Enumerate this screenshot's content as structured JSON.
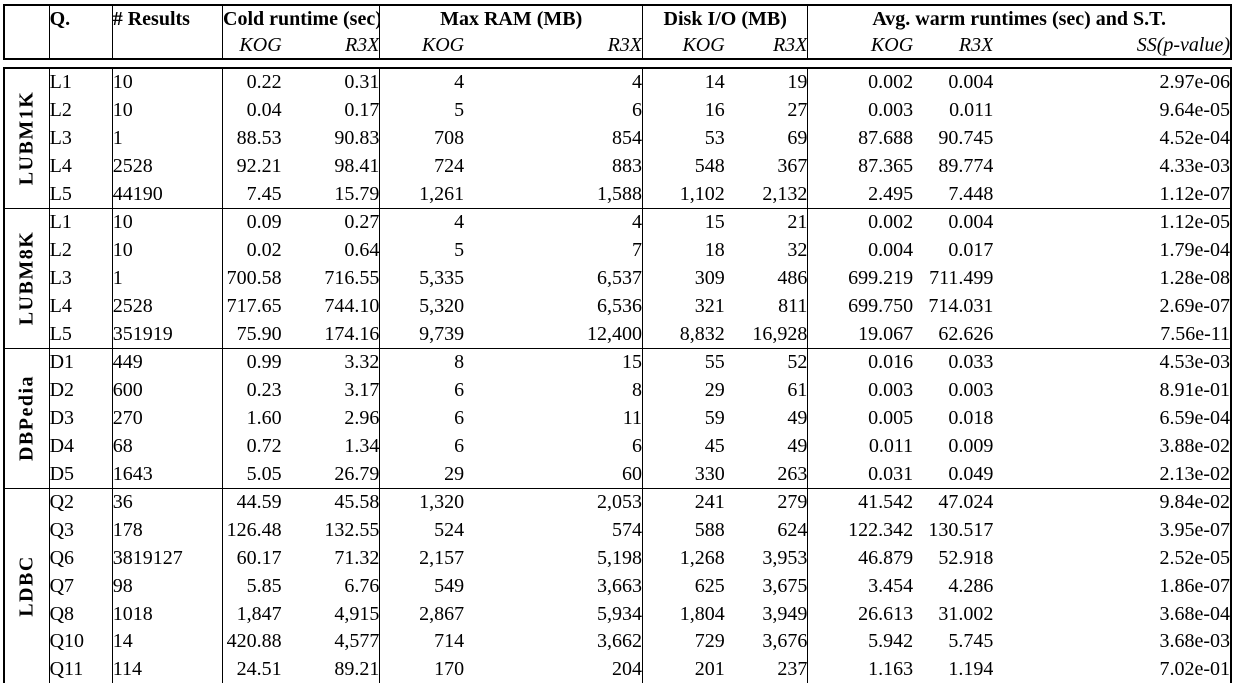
{
  "colors": {
    "text": "#000000",
    "background": "#ffffff",
    "rule": "#000000"
  },
  "table": {
    "header": {
      "q": "Q.",
      "results": "# Results",
      "groups": [
        {
          "label": "Cold runtime (sec)",
          "sub": [
            "KOG",
            "R3X"
          ]
        },
        {
          "label": "Max RAM (MB)",
          "sub": [
            "KOG",
            "R3X"
          ]
        },
        {
          "label": "Disk I/O (MB)",
          "sub": [
            "KOG",
            "R3X"
          ]
        },
        {
          "label": "Avg. warm runtimes (sec) and S.T.",
          "sub": [
            "KOG",
            "R3X",
            "SS(p-value)"
          ]
        }
      ]
    },
    "sections": [
      {
        "name": "LUBM1K",
        "rows": [
          [
            "L1",
            "10",
            "0.22",
            "0.31",
            "4",
            "4",
            "14",
            "19",
            "0.002",
            "0.004",
            "2.97e-06"
          ],
          [
            "L2",
            "10",
            "0.04",
            "0.17",
            "5",
            "6",
            "16",
            "27",
            "0.003",
            "0.011",
            "9.64e-05"
          ],
          [
            "L3",
            "1",
            "88.53",
            "90.83",
            "708",
            "854",
            "53",
            "69",
            "87.688",
            "90.745",
            "4.52e-04"
          ],
          [
            "L4",
            "2528",
            "92.21",
            "98.41",
            "724",
            "883",
            "548",
            "367",
            "87.365",
            "89.774",
            "4.33e-03"
          ],
          [
            "L5",
            "44190",
            "7.45",
            "15.79",
            "1,261",
            "1,588",
            "1,102",
            "2,132",
            "2.495",
            "7.448",
            "1.12e-07"
          ]
        ]
      },
      {
        "name": "LUBM8K",
        "rows": [
          [
            "L1",
            "10",
            "0.09",
            "0.27",
            "4",
            "4",
            "15",
            "21",
            "0.002",
            "0.004",
            "1.12e-05"
          ],
          [
            "L2",
            "10",
            "0.02",
            "0.64",
            "5",
            "7",
            "18",
            "32",
            "0.004",
            "0.017",
            "1.79e-04"
          ],
          [
            "L3",
            "1",
            "700.58",
            "716.55",
            "5,335",
            "6,537",
            "309",
            "486",
            "699.219",
            "711.499",
            "1.28e-08"
          ],
          [
            "L4",
            "2528",
            "717.65",
            "744.10",
            "5,320",
            "6,536",
            "321",
            "811",
            "699.750",
            "714.031",
            "2.69e-07"
          ],
          [
            "L5",
            "351919",
            "75.90",
            "174.16",
            "9,739",
            "12,400",
            "8,832",
            "16,928",
            "19.067",
            "62.626",
            "7.56e-11"
          ]
        ]
      },
      {
        "name": "DBPedia",
        "rows": [
          [
            "D1",
            "449",
            "0.99",
            "3.32",
            "8",
            "15",
            "55",
            "52",
            "0.016",
            "0.033",
            "4.53e-03"
          ],
          [
            "D2",
            "600",
            "0.23",
            "3.17",
            "6",
            "8",
            "29",
            "61",
            "0.003",
            "0.003",
            "8.91e-01"
          ],
          [
            "D3",
            "270",
            "1.60",
            "2.96",
            "6",
            "11",
            "59",
            "49",
            "0.005",
            "0.018",
            "6.59e-04"
          ],
          [
            "D4",
            "68",
            "0.72",
            "1.34",
            "6",
            "6",
            "45",
            "49",
            "0.011",
            "0.009",
            "3.88e-02"
          ],
          [
            "D5",
            "1643",
            "5.05",
            "26.79",
            "29",
            "60",
            "330",
            "263",
            "0.031",
            "0.049",
            "2.13e-02"
          ]
        ]
      },
      {
        "name": "LDBC",
        "rows": [
          [
            "Q2",
            "36",
            "44.59",
            "45.58",
            "1,320",
            "2,053",
            "241",
            "279",
            "41.542",
            "47.024",
            "9.84e-02"
          ],
          [
            "Q3",
            "178",
            "126.48",
            "132.55",
            "524",
            "574",
            "588",
            "624",
            "122.342",
            "130.517",
            "3.95e-07"
          ],
          [
            "Q6",
            "3819127",
            "60.17",
            "71.32",
            "2,157",
            "5,198",
            "1,268",
            "3,953",
            "46.879",
            "52.918",
            "2.52e-05"
          ],
          [
            "Q7",
            "98",
            "5.85",
            "6.76",
            "549",
            "3,663",
            "625",
            "3,675",
            "3.454",
            "4.286",
            "1.86e-07"
          ],
          [
            "Q8",
            "1018",
            "1,847",
            "4,915",
            "2,867",
            "5,934",
            "1,804",
            "3,949",
            "26.613",
            "31.002",
            "3.68e-04"
          ],
          [
            "Q10",
            "14",
            "420.88",
            "4,577",
            "714",
            "3,662",
            "729",
            "3,676",
            "5.942",
            "5.745",
            "3.68e-03"
          ],
          [
            "Q11",
            "114",
            "24.51",
            "89.21",
            "170",
            "204",
            "201",
            "237",
            "1.163",
            "1.194",
            "7.02e-01"
          ]
        ]
      }
    ]
  }
}
